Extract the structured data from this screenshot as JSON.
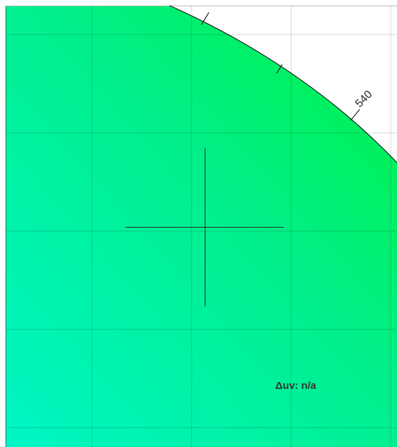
{
  "wavelength_labels": [
    "540"
  ],
  "readout": "Δuv: n/a"
}
